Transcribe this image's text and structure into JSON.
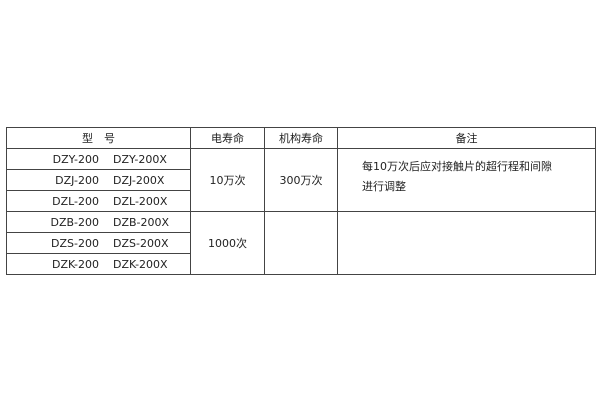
{
  "table": {
    "headers": [
      "型　号",
      "电寿命",
      "机构寿命",
      "备注"
    ],
    "models": [
      [
        "DZY-200",
        "DZY-200X"
      ],
      [
        "DZJ-200",
        "DZJ-200X"
      ],
      [
        "DZL-200",
        "DZL-200X"
      ],
      [
        "DZB-200",
        "DZB-200X"
      ],
      [
        "DZS-200",
        "DZS-200X"
      ],
      [
        "DZK-200",
        "DZK-200X"
      ]
    ],
    "groups": [
      {
        "electrical_life": "10万次",
        "mechanical_life": "300万次",
        "note_lines": [
          "每10万次后应对接触片的超行程和间隙",
          "进行调整"
        ]
      },
      {
        "electrical_life": "1000次",
        "mechanical_life": "",
        "note_lines": []
      }
    ]
  }
}
